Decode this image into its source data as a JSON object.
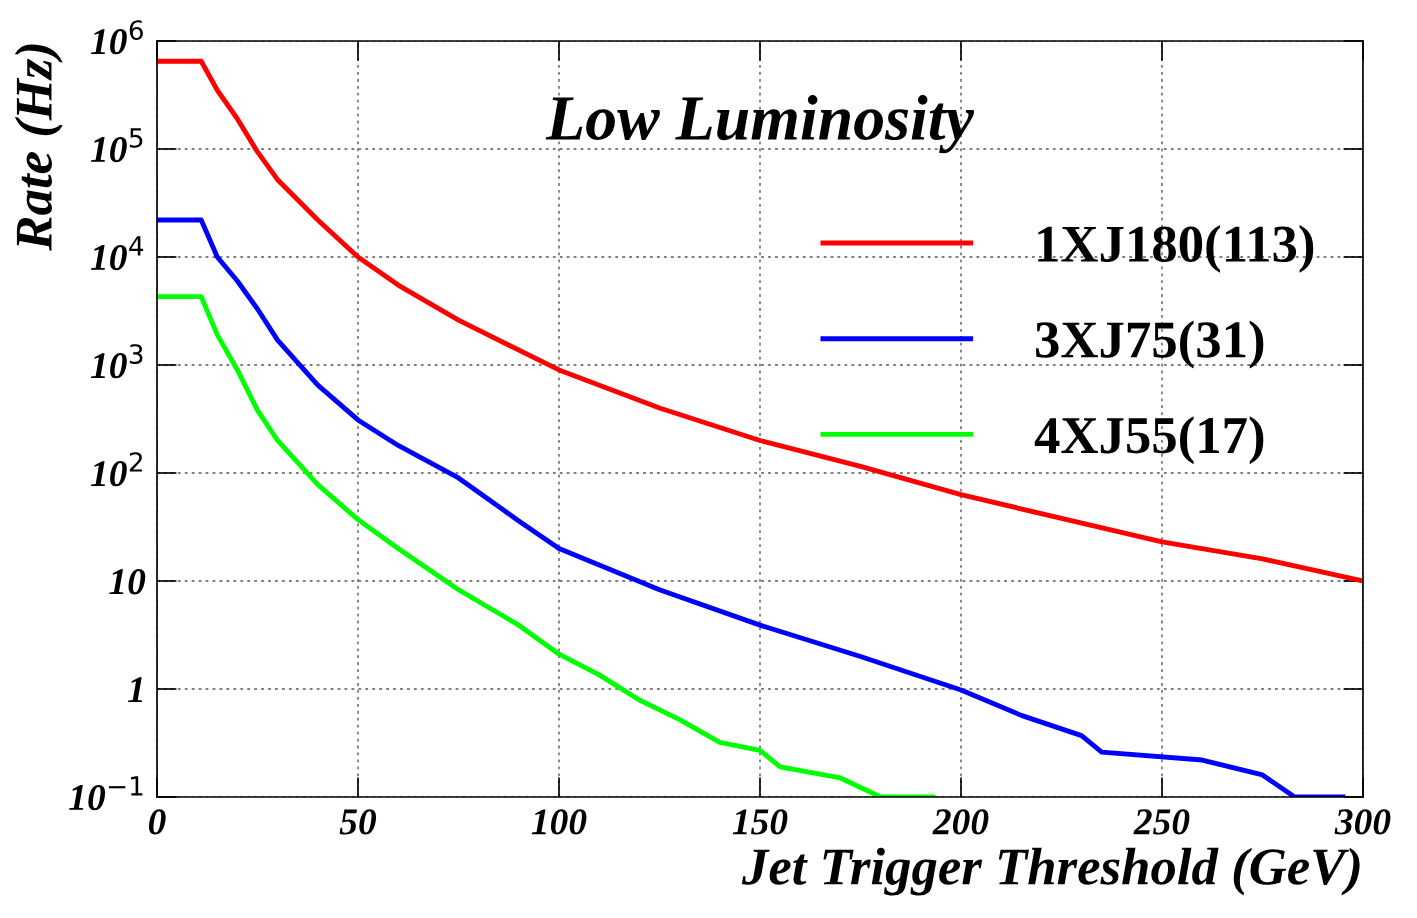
{
  "chart_data": {
    "type": "line",
    "title": "Low Luminosity",
    "xlabel": "Jet Trigger Threshold (GeV)",
    "ylabel": "Rate (Hz)",
    "log": "y",
    "grid": true,
    "legend": "top right",
    "line_style": "solid",
    "marker": "none",
    "xlim": [
      0,
      300
    ],
    "xticks": [
      0,
      50,
      100,
      150,
      200,
      250,
      300
    ],
    "ylim": [
      0.1,
      1000000
    ],
    "yticks": [
      {
        "value": 0.1,
        "label": "10$^{−1}$"
      },
      1,
      10,
      {
        "value": 100,
        "label": "10$^{2}$"
      },
      {
        "value": 1000,
        "label": "10$^{3}$"
      },
      {
        "value": 10000,
        "label": "10$^{4}$"
      },
      {
        "value": 100000,
        "label": "10$^{5}$"
      },
      {
        "value": 1000000,
        "label": "10$^{6}$"
      }
    ],
    "series": [
      {
        "name": "1XJ180(113)",
        "color": "#ff0000",
        "x": [
          0,
          11,
          15,
          20,
          25,
          30,
          40,
          50,
          60,
          75,
          100,
          125,
          150,
          175,
          200,
          225,
          250,
          275,
          300
        ],
        "values": [
          650000,
          650000,
          350000,
          190000,
          94000,
          52000,
          22000,
          10000,
          5500,
          2600,
          900,
          400,
          200,
          115,
          63,
          38,
          23,
          16,
          10
        ]
      },
      {
        "name": "3XJ75(31)",
        "color": "#0000ff",
        "x": [
          0,
          11,
          15,
          20,
          25,
          30,
          40,
          50,
          60,
          75,
          90,
          100,
          125,
          150,
          175,
          200,
          215,
          230,
          235,
          260,
          275,
          283,
          295
        ],
        "values": [
          22000,
          22000,
          10000,
          6000,
          3300,
          1700,
          650,
          310,
          180,
          90,
          36,
          20,
          8.3,
          3.9,
          2.0,
          0.98,
          0.57,
          0.37,
          0.26,
          0.22,
          0.16,
          0.1,
          0.1
        ]
      },
      {
        "name": "4XJ55(17)",
        "color": "#00ff00",
        "x": [
          0,
          11,
          15,
          20,
          25,
          30,
          40,
          50,
          60,
          75,
          90,
          100,
          110,
          120,
          130,
          140,
          150,
          155,
          170,
          180,
          193
        ],
        "values": [
          4300,
          4300,
          1900,
          900,
          380,
          200,
          78,
          37,
          20,
          8.3,
          3.9,
          2.1,
          1.35,
          0.79,
          0.52,
          0.32,
          0.27,
          0.19,
          0.15,
          0.1,
          0.1
        ]
      }
    ]
  }
}
